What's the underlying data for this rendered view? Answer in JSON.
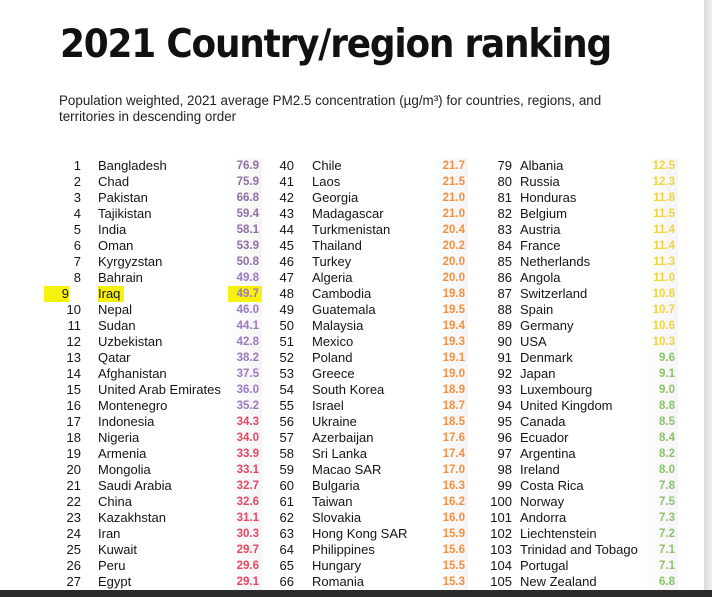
{
  "title": "2021 Country/region ranking",
  "subtitle": "Population weighted, 2021 average PM2.5 concentration (µg/m³) for countries, regions, and territories in descending order",
  "columns": [
    [
      {
        "rank": "1",
        "name": "Bangladesh",
        "value": "76.9",
        "color": "#8e6fa6"
      },
      {
        "rank": "2",
        "name": "Chad",
        "value": "75.9",
        "color": "#8e6fa6"
      },
      {
        "rank": "3",
        "name": "Pakistan",
        "value": "66.8",
        "color": "#8e6fa6"
      },
      {
        "rank": "4",
        "name": "Tajikistan",
        "value": "59.4",
        "color": "#8e6fa6"
      },
      {
        "rank": "5",
        "name": "India",
        "value": "58.1",
        "color": "#8e6fa6"
      },
      {
        "rank": "6",
        "name": "Oman",
        "value": "53.9",
        "color": "#8e6fa6"
      },
      {
        "rank": "7",
        "name": "Kyrgyzstan",
        "value": "50.8",
        "color": "#8e6fa6"
      },
      {
        "rank": "8",
        "name": "Bahrain",
        "value": "49.8",
        "color": "#9c78c2"
      },
      {
        "rank": "9",
        "name": "Iraq",
        "value": "49.7",
        "color": "#9c78c2",
        "highlight": true
      },
      {
        "rank": "10",
        "name": "Nepal",
        "value": "46.0",
        "color": "#9c78c2"
      },
      {
        "rank": "11",
        "name": "Sudan",
        "value": "44.1",
        "color": "#9c78c2"
      },
      {
        "rank": "12",
        "name": "Uzbekistan",
        "value": "42.8",
        "color": "#9c78c2"
      },
      {
        "rank": "13",
        "name": "Qatar",
        "value": "38.2",
        "color": "#9c78c2"
      },
      {
        "rank": "14",
        "name": "Afghanistan",
        "value": "37.5",
        "color": "#9c78c2"
      },
      {
        "rank": "15",
        "name": "United Arab Emirates",
        "value": "36.0",
        "color": "#9c78c2"
      },
      {
        "rank": "16",
        "name": "Montenegro",
        "value": "35.2",
        "color": "#9c78c2"
      },
      {
        "rank": "17",
        "name": "Indonesia",
        "value": "34.3",
        "color": "#e8475f"
      },
      {
        "rank": "18",
        "name": "Nigeria",
        "value": "34.0",
        "color": "#e8475f"
      },
      {
        "rank": "19",
        "name": "Armenia",
        "value": "33.9",
        "color": "#e8475f"
      },
      {
        "rank": "20",
        "name": "Mongolia",
        "value": "33.1",
        "color": "#e8475f"
      },
      {
        "rank": "21",
        "name": "Saudi Arabia",
        "value": "32.7",
        "color": "#e8475f"
      },
      {
        "rank": "22",
        "name": "China",
        "value": "32.6",
        "color": "#e8475f"
      },
      {
        "rank": "23",
        "name": "Kazakhstan",
        "value": "31.1",
        "color": "#e8475f"
      },
      {
        "rank": "24",
        "name": "Iran",
        "value": "30.3",
        "color": "#e8475f"
      },
      {
        "rank": "25",
        "name": "Kuwait",
        "value": "29.7",
        "color": "#e8475f"
      },
      {
        "rank": "26",
        "name": "Peru",
        "value": "29.6",
        "color": "#e8475f"
      },
      {
        "rank": "27",
        "name": "Egypt",
        "value": "29.1",
        "color": "#e8475f"
      }
    ],
    [
      {
        "rank": "40",
        "name": "Chile",
        "value": "21.7",
        "color": "#f3903f"
      },
      {
        "rank": "41",
        "name": "Laos",
        "value": "21.5",
        "color": "#f3903f"
      },
      {
        "rank": "42",
        "name": "Georgia",
        "value": "21.0",
        "color": "#f3903f"
      },
      {
        "rank": "43",
        "name": "Madagascar",
        "value": "21.0",
        "color": "#f3903f"
      },
      {
        "rank": "44",
        "name": "Turkmenistan",
        "value": "20.4",
        "color": "#f3903f"
      },
      {
        "rank": "45",
        "name": "Thailand",
        "value": "20.2",
        "color": "#f3903f"
      },
      {
        "rank": "46",
        "name": "Turkey",
        "value": "20.0",
        "color": "#f3903f"
      },
      {
        "rank": "47",
        "name": "Algeria",
        "value": "20.0",
        "color": "#f3903f"
      },
      {
        "rank": "48",
        "name": "Cambodia",
        "value": "19.8",
        "color": "#f3903f"
      },
      {
        "rank": "49",
        "name": "Guatemala",
        "value": "19.5",
        "color": "#f3903f"
      },
      {
        "rank": "50",
        "name": "Malaysia",
        "value": "19.4",
        "color": "#f3903f"
      },
      {
        "rank": "51",
        "name": "Mexico",
        "value": "19.3",
        "color": "#f3903f"
      },
      {
        "rank": "52",
        "name": "Poland",
        "value": "19.1",
        "color": "#f3903f"
      },
      {
        "rank": "53",
        "name": "Greece",
        "value": "19.0",
        "color": "#f3903f"
      },
      {
        "rank": "54",
        "name": "South Korea",
        "value": "18.9",
        "color": "#f3903f"
      },
      {
        "rank": "55",
        "name": "Israel",
        "value": "18.7",
        "color": "#f3903f"
      },
      {
        "rank": "56",
        "name": "Ukraine",
        "value": "18.5",
        "color": "#f3903f"
      },
      {
        "rank": "57",
        "name": "Azerbaijan",
        "value": "17.6",
        "color": "#f3903f"
      },
      {
        "rank": "58",
        "name": "Sri Lanka",
        "value": "17.4",
        "color": "#f3903f"
      },
      {
        "rank": "59",
        "name": "Macao SAR",
        "value": "17.0",
        "color": "#f3903f"
      },
      {
        "rank": "60",
        "name": "Bulgaria",
        "value": "16.3",
        "color": "#f3903f"
      },
      {
        "rank": "61",
        "name": "Taiwan",
        "value": "16.2",
        "color": "#f3903f"
      },
      {
        "rank": "62",
        "name": "Slovakia",
        "value": "16.0",
        "color": "#f3903f"
      },
      {
        "rank": "63",
        "name": "Hong Kong SAR",
        "value": "15.9",
        "color": "#f3903f"
      },
      {
        "rank": "64",
        "name": "Philippines",
        "value": "15.6",
        "color": "#f3903f"
      },
      {
        "rank": "65",
        "name": "Hungary",
        "value": "15.5",
        "color": "#f3903f"
      },
      {
        "rank": "66",
        "name": "Romania",
        "value": "15.3",
        "color": "#f3903f"
      }
    ],
    [
      {
        "rank": "79",
        "name": "Albania",
        "value": "12.5",
        "color": "#f2d33b"
      },
      {
        "rank": "80",
        "name": "Russia",
        "value": "12.3",
        "color": "#f2d33b"
      },
      {
        "rank": "81",
        "name": "Honduras",
        "value": "11.8",
        "color": "#f2d33b"
      },
      {
        "rank": "82",
        "name": "Belgium",
        "value": "11.5",
        "color": "#f2d33b"
      },
      {
        "rank": "83",
        "name": "Austria",
        "value": "11.4",
        "color": "#f2d33b"
      },
      {
        "rank": "84",
        "name": "France",
        "value": "11.4",
        "color": "#f2d33b"
      },
      {
        "rank": "85",
        "name": "Netherlands",
        "value": "11.3",
        "color": "#f2d33b"
      },
      {
        "rank": "86",
        "name": "Angola",
        "value": "11.0",
        "color": "#f2d33b"
      },
      {
        "rank": "87",
        "name": "Switzerland",
        "value": "10.8",
        "color": "#f2d33b"
      },
      {
        "rank": "88",
        "name": "Spain",
        "value": "10.7",
        "color": "#f2d33b"
      },
      {
        "rank": "89",
        "name": "Germany",
        "value": "10.6",
        "color": "#f2d33b"
      },
      {
        "rank": "90",
        "name": "USA",
        "value": "10.3",
        "color": "#f2d33b"
      },
      {
        "rank": "91",
        "name": "Denmark",
        "value": "9.6",
        "color": "#8bc26a"
      },
      {
        "rank": "92",
        "name": "Japan",
        "value": "9.1",
        "color": "#8bc26a"
      },
      {
        "rank": "93",
        "name": "Luxembourg",
        "value": "9.0",
        "color": "#8bc26a"
      },
      {
        "rank": "94",
        "name": "United Kingdom",
        "value": "8.8",
        "color": "#8bc26a"
      },
      {
        "rank": "95",
        "name": "Canada",
        "value": "8.5",
        "color": "#8bc26a"
      },
      {
        "rank": "96",
        "name": "Ecuador",
        "value": "8.4",
        "color": "#8bc26a"
      },
      {
        "rank": "97",
        "name": "Argentina",
        "value": "8.2",
        "color": "#8bc26a"
      },
      {
        "rank": "98",
        "name": "Ireland",
        "value": "8.0",
        "color": "#8bc26a"
      },
      {
        "rank": "99",
        "name": "Costa Rica",
        "value": "7.8",
        "color": "#8bc26a"
      },
      {
        "rank": "100",
        "name": "Norway",
        "value": "7.5",
        "color": "#8bc26a"
      },
      {
        "rank": "101",
        "name": "Andorra",
        "value": "7.3",
        "color": "#8bc26a"
      },
      {
        "rank": "102",
        "name": "Liechtenstein",
        "value": "7.2",
        "color": "#8bc26a"
      },
      {
        "rank": "103",
        "name": "Trinidad and Tobago",
        "value": "7.1",
        "color": "#8bc26a"
      },
      {
        "rank": "104",
        "name": "Portugal",
        "value": "7.1",
        "color": "#8bc26a"
      },
      {
        "rank": "105",
        "name": "New Zealand",
        "value": "6.8",
        "color": "#8bc26a"
      }
    ]
  ]
}
